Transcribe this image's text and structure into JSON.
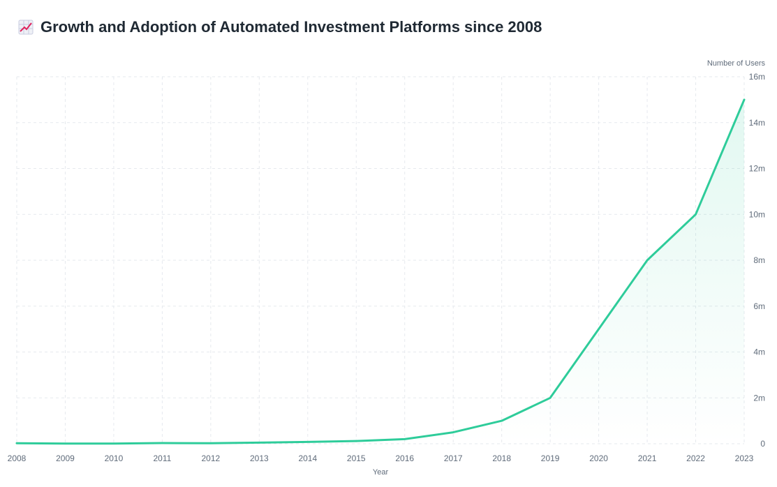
{
  "header": {
    "title": "Growth and Adoption of Automated Investment Platforms since 2008",
    "icon": "chart-increasing-icon"
  },
  "colors": {
    "line": "#2ecc9a",
    "area": "#2ecc9a",
    "grid": "#e6e9ee",
    "text": "#5f6b7a",
    "title": "#1f2933"
  },
  "chart_data": {
    "type": "area",
    "title": "Growth and Adoption of Automated Investment Platforms since 2008",
    "xlabel": "Year",
    "ylabel": "Number of Users",
    "x": [
      2008,
      2009,
      2010,
      2011,
      2012,
      2013,
      2014,
      2015,
      2016,
      2017,
      2018,
      2019,
      2020,
      2021,
      2022,
      2023
    ],
    "series": [
      {
        "values": [
          0.02,
          0.01,
          0.01,
          0.03,
          0.02,
          0.05,
          0.08,
          0.12,
          0.2,
          0.5,
          1.0,
          2.0,
          5.0,
          8.0,
          10.0,
          15.0
        ]
      }
    ],
    "y_unit_suffix": "m",
    "ylim": [
      0,
      16
    ],
    "yticks": [
      0,
      2,
      4,
      6,
      8,
      10,
      12,
      14,
      16
    ],
    "ytick_labels": [
      "0",
      "2m",
      "4m",
      "6m",
      "8m",
      "10m",
      "12m",
      "14m",
      "16m"
    ],
    "xtick_labels": [
      "2008",
      "2009",
      "2010",
      "2011",
      "2012",
      "2013",
      "2014",
      "2015",
      "2016",
      "2017",
      "2018",
      "2019",
      "2020",
      "2021",
      "2022",
      "2023"
    ],
    "y_axis_position": "right",
    "grid": true,
    "legend": "none"
  }
}
